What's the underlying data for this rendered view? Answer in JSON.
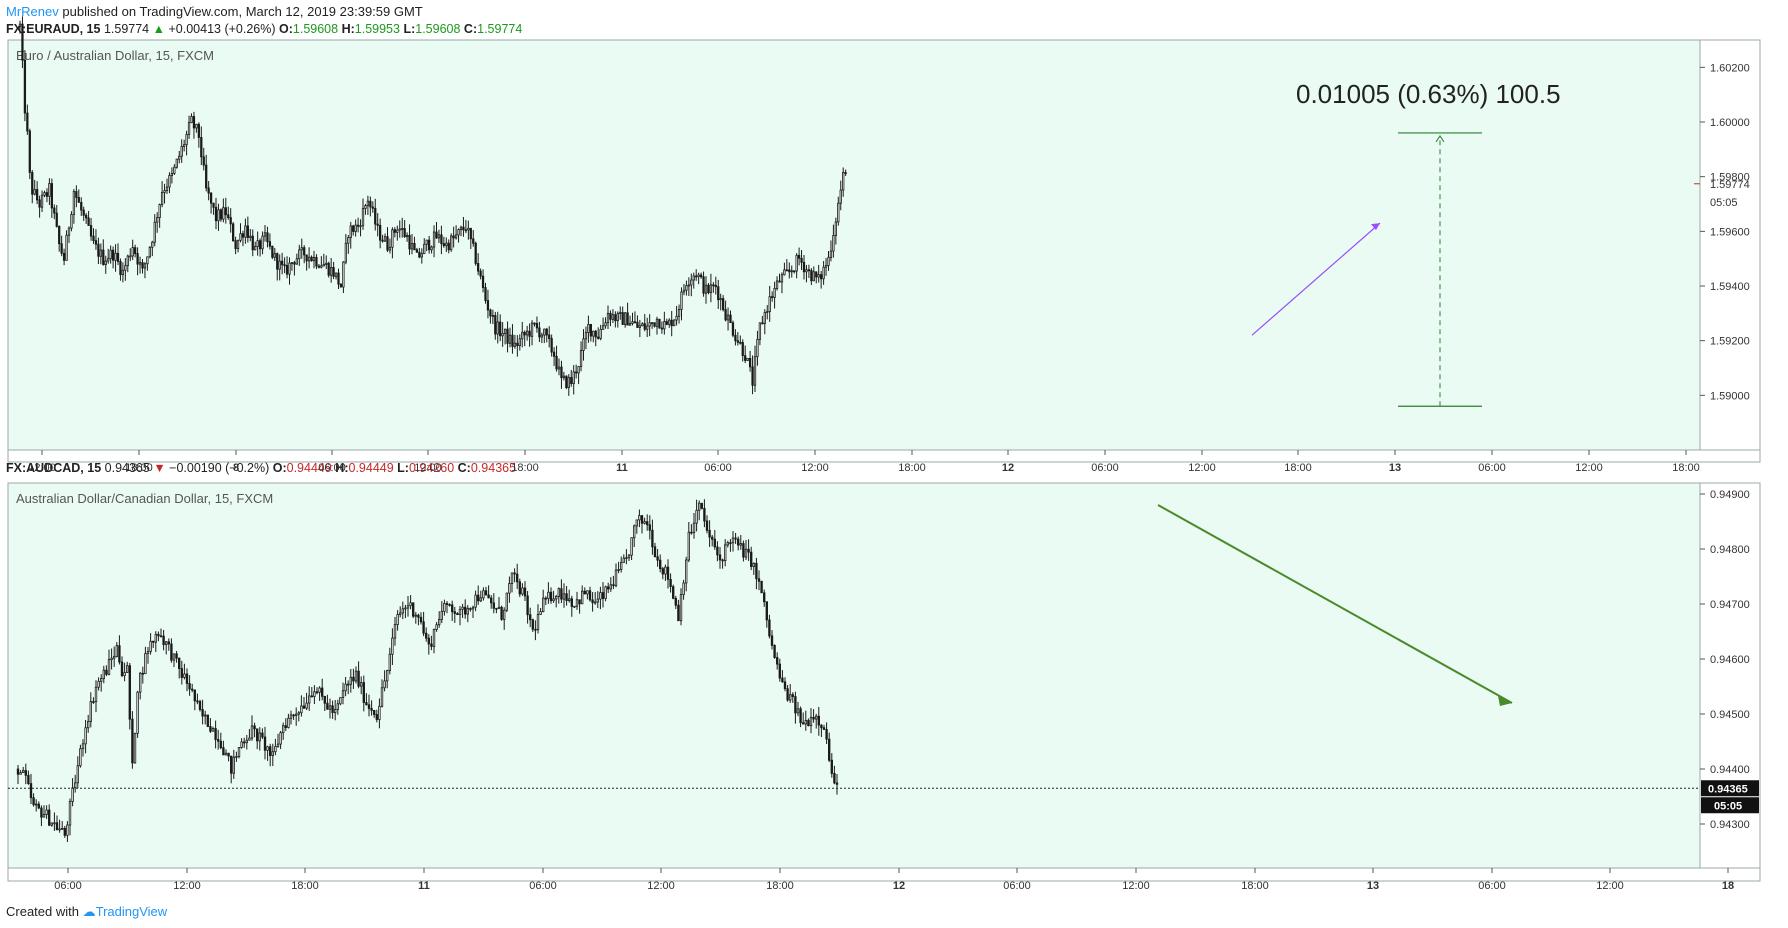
{
  "header": {
    "author": "MrRenev",
    "published_text": "published on TradingView.com, March 12, 2019 23:39:59 GMT"
  },
  "colors": {
    "panel_bg": "#e9fbf3",
    "candle": "#1a1a1a",
    "up_text": "#1b9a1b",
    "down_text": "#c62828",
    "measure_line": "#2e7d32",
    "trend_purple": "#9c4dff",
    "trend_green": "#4a8a2a",
    "accent": "#2196f3"
  },
  "chart_data": [
    {
      "type": "candlestick",
      "symbol": "FX:EURAUD",
      "interval": "15",
      "title": "Euro / Australian Dollar, 15, FXCM",
      "ohlc_line": {
        "symbol_label": "FX:EURAUD, 15",
        "last": "1.59774",
        "change": "+0.00413 (+0.26%)",
        "direction": "up",
        "O": "1.59608",
        "H": "1.59953",
        "L": "1.59608",
        "C": "1.59774"
      },
      "y_axis": {
        "range": [
          1.588,
          1.603
        ],
        "ticks": [
          "1.60200",
          "1.60000",
          "1.59800",
          "1.59600",
          "1.59400",
          "1.59200",
          "1.59000"
        ]
      },
      "x_axis": {
        "ticks": [
          "12:00",
          "18:00",
          "8",
          "06:00",
          "12:00",
          "18:00",
          "11",
          "06:00",
          "12:00",
          "18:00",
          "12",
          "06:00",
          "12:00",
          "18:00",
          "13",
          "06:00",
          "12:00",
          "18:00"
        ]
      },
      "last_price_label": "1.59774",
      "countdown": "05:05",
      "measure_annotation": "0.01005 (0.63%) 100.5",
      "measure_range": [
        1.5896,
        1.5996
      ],
      "keypoints": [
        [
          0,
          1.6035
        ],
        [
          1,
          1.602
        ],
        [
          2,
          1.6005
        ],
        [
          3,
          1.5995
        ],
        [
          4,
          1.598
        ],
        [
          5,
          1.5975
        ],
        [
          8,
          1.597
        ],
        [
          12,
          1.5975
        ],
        [
          16,
          1.5955
        ],
        [
          18,
          1.595
        ],
        [
          22,
          1.5975
        ],
        [
          26,
          1.5965
        ],
        [
          30,
          1.5955
        ],
        [
          34,
          1.595
        ],
        [
          38,
          1.5952
        ],
        [
          42,
          1.5945
        ],
        [
          46,
          1.5955
        ],
        [
          50,
          1.5945
        ],
        [
          54,
          1.5958
        ],
        [
          58,
          1.5975
        ],
        [
          62,
          1.598
        ],
        [
          66,
          1.599
        ],
        [
          70,
          1.6
        ],
        [
          73,
          1.5995
        ],
        [
          76,
          1.5975
        ],
        [
          80,
          1.5965
        ],
        [
          84,
          1.5967
        ],
        [
          88,
          1.5955
        ],
        [
          92,
          1.5962
        ],
        [
          96,
          1.5953
        ],
        [
          100,
          1.5957
        ],
        [
          104,
          1.595
        ],
        [
          108,
          1.5945
        ],
        [
          112,
          1.595
        ],
        [
          116,
          1.5952
        ],
        [
          120,
          1.595
        ],
        [
          124,
          1.5948
        ],
        [
          128,
          1.5945
        ],
        [
          131,
          1.594
        ],
        [
          134,
          1.596
        ],
        [
          138,
          1.5962
        ],
        [
          142,
          1.5972
        ],
        [
          146,
          1.596
        ],
        [
          150,
          1.5955
        ],
        [
          154,
          1.5962
        ],
        [
          158,
          1.5958
        ],
        [
          162,
          1.595
        ],
        [
          166,
          1.5955
        ],
        [
          170,
          1.5958
        ],
        [
          174,
          1.5955
        ],
        [
          178,
          1.5958
        ],
        [
          182,
          1.5962
        ],
        [
          186,
          1.595
        ],
        [
          190,
          1.5935
        ],
        [
          194,
          1.5925
        ],
        [
          198,
          1.5922
        ],
        [
          202,
          1.5918
        ],
        [
          206,
          1.5922
        ],
        [
          210,
          1.5925
        ],
        [
          214,
          1.5922
        ],
        [
          218,
          1.5915
        ],
        [
          221,
          1.5905
        ],
        [
          225,
          1.5905
        ],
        [
          228,
          1.5912
        ],
        [
          232,
          1.5925
        ],
        [
          236,
          1.5922
        ],
        [
          240,
          1.593
        ],
        [
          244,
          1.5928
        ],
        [
          248,
          1.5928
        ],
        [
          252,
          1.5925
        ],
        [
          256,
          1.5925
        ],
        [
          260,
          1.5928
        ],
        [
          264,
          1.5925
        ],
        [
          268,
          1.593
        ],
        [
          272,
          1.5942
        ],
        [
          276,
          1.5945
        ],
        [
          280,
          1.5938
        ],
        [
          284,
          1.594
        ],
        [
          288,
          1.593
        ],
        [
          292,
          1.5922
        ],
        [
          296,
          1.5915
        ],
        [
          299,
          1.5905
        ],
        [
          302,
          1.5925
        ],
        [
          306,
          1.5935
        ],
        [
          310,
          1.5942
        ],
        [
          314,
          1.5945
        ],
        [
          318,
          1.595
        ],
        [
          322,
          1.5945
        ],
        [
          326,
          1.5942
        ],
        [
          330,
          1.595
        ],
        [
          333,
          1.5965
        ],
        [
          336,
          1.598
        ]
      ]
    },
    {
      "type": "candlestick",
      "symbol": "FX:AUDCAD",
      "interval": "15",
      "title": "Australian Dollar/Canadian Dollar, 15, FXCM",
      "ohlc_line": {
        "symbol_label": "FX:AUDCAD, 15",
        "last": "0.94365",
        "change": "−0.00190 (−0.2%)",
        "direction": "down",
        "O": "0.94449",
        "H": "0.94449",
        "L": "0.94260",
        "C": "0.94365"
      },
      "y_axis": {
        "range": [
          0.9422,
          0.9492
        ],
        "ticks": [
          "0.94900",
          "0.94800",
          "0.94700",
          "0.94600",
          "0.94500",
          "0.94400",
          "0.94300"
        ]
      },
      "x_axis": {
        "ticks": [
          "06:00",
          "12:00",
          "18:00",
          "11",
          "06:00",
          "12:00",
          "18:00",
          "12",
          "06:00",
          "12:00",
          "18:00",
          "13",
          "06:00",
          "12:00",
          "18"
        ]
      },
      "last_price_label": "0.94365",
      "countdown": "05:05",
      "keypoints": [
        [
          0,
          0.944
        ],
        [
          3,
          0.9438
        ],
        [
          6,
          0.9433
        ],
        [
          10,
          0.9432
        ],
        [
          14,
          0.943
        ],
        [
          18,
          0.9428
        ],
        [
          22,
          0.9438
        ],
        [
          26,
          0.9448
        ],
        [
          30,
          0.9455
        ],
        [
          34,
          0.9458
        ],
        [
          38,
          0.9462
        ],
        [
          40,
          0.9458
        ],
        [
          42,
          0.9458
        ],
        [
          44,
          0.944
        ],
        [
          46,
          0.9455
        ],
        [
          50,
          0.9462
        ],
        [
          54,
          0.9465
        ],
        [
          58,
          0.9462
        ],
        [
          62,
          0.9458
        ],
        [
          66,
          0.9455
        ],
        [
          70,
          0.945
        ],
        [
          74,
          0.9448
        ],
        [
          78,
          0.9445
        ],
        [
          82,
          0.944
        ],
        [
          86,
          0.9445
        ],
        [
          90,
          0.9447
        ],
        [
          94,
          0.9445
        ],
        [
          98,
          0.9442
        ],
        [
          102,
          0.9448
        ],
        [
          106,
          0.945
        ],
        [
          110,
          0.9452
        ],
        [
          114,
          0.9455
        ],
        [
          118,
          0.9452
        ],
        [
          122,
          0.945
        ],
        [
          126,
          0.9455
        ],
        [
          130,
          0.9457
        ],
        [
          134,
          0.9452
        ],
        [
          138,
          0.945
        ],
        [
          142,
          0.9458
        ],
        [
          146,
          0.9468
        ],
        [
          150,
          0.947
        ],
        [
          154,
          0.9468
        ],
        [
          158,
          0.9462
        ],
        [
          162,
          0.9468
        ],
        [
          166,
          0.947
        ],
        [
          170,
          0.9468
        ],
        [
          174,
          0.947
        ],
        [
          178,
          0.9472
        ],
        [
          182,
          0.947
        ],
        [
          186,
          0.9468
        ],
        [
          190,
          0.9475
        ],
        [
          194,
          0.9472
        ],
        [
          198,
          0.9465
        ],
        [
          202,
          0.947
        ],
        [
          206,
          0.9472
        ],
        [
          210,
          0.9472
        ],
        [
          214,
          0.947
        ],
        [
          218,
          0.9472
        ],
        [
          222,
          0.947
        ],
        [
          226,
          0.9472
        ],
        [
          230,
          0.9475
        ],
        [
          234,
          0.9478
        ],
        [
          238,
          0.9485
        ],
        [
          242,
          0.9485
        ],
        [
          246,
          0.9478
        ],
        [
          250,
          0.9475
        ],
        [
          254,
          0.9468
        ],
        [
          258,
          0.9482
        ],
        [
          262,
          0.9488
        ],
        [
          266,
          0.9482
        ],
        [
          270,
          0.9478
        ],
        [
          274,
          0.9482
        ],
        [
          278,
          0.948
        ],
        [
          282,
          0.9478
        ],
        [
          286,
          0.9472
        ],
        [
          290,
          0.9462
        ],
        [
          294,
          0.9455
        ],
        [
          298,
          0.9452
        ],
        [
          302,
          0.9448
        ],
        [
          306,
          0.945
        ],
        [
          310,
          0.9448
        ],
        [
          312,
          0.9442
        ],
        [
          314,
          0.94365
        ]
      ]
    }
  ],
  "footer": {
    "created_with": "Created with",
    "brand": "TradingView"
  }
}
